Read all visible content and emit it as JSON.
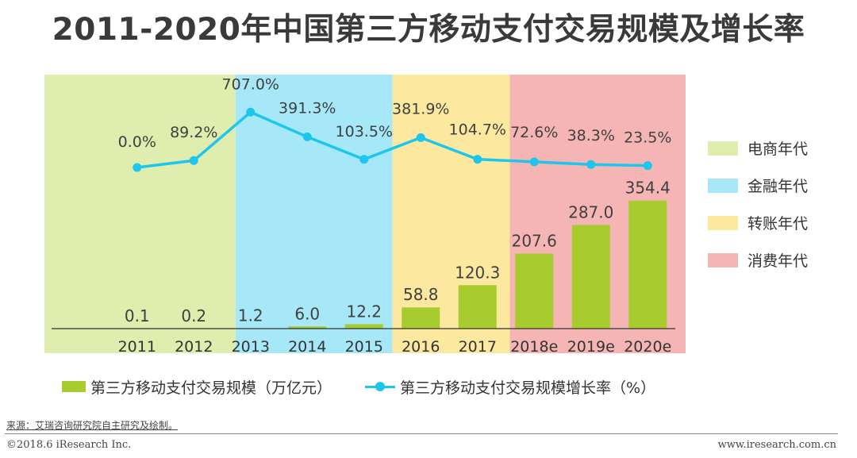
{
  "title": "2011-2020年中国第三方移动支付交易规模及增长率",
  "chart_data": {
    "type": "bar",
    "categories": [
      "2011",
      "2012",
      "2013",
      "2014",
      "2015",
      "2016",
      "2017",
      "2018e",
      "2019e",
      "2020e"
    ],
    "series": [
      {
        "name": "第三方移动支付交易规模（万亿元）",
        "type": "bar",
        "axis": "left",
        "color": "#a8cc30",
        "values": [
          0.1,
          0.2,
          1.2,
          6.0,
          12.2,
          58.8,
          120.3,
          207.6,
          287.0,
          354.4
        ],
        "labels": [
          "0.1",
          "0.2",
          "1.2",
          "6.0",
          "12.2",
          "58.8",
          "120.3",
          "207.6",
          "287.0",
          "354.4"
        ]
      },
      {
        "name": "第三方移动支付交易规模增长率（%）",
        "type": "line",
        "axis": "right",
        "color": "#1ec6ee",
        "values": [
          0.0,
          89.2,
          707.0,
          391.3,
          103.5,
          381.9,
          104.7,
          72.6,
          38.3,
          23.5
        ],
        "labels": [
          "0.0%",
          "89.2%",
          "707.0%",
          "391.3%",
          "103.5%",
          "381.9%",
          "104.7%",
          "72.6%",
          "38.3%",
          "23.5%"
        ]
      }
    ],
    "eras": [
      {
        "name": "电商年代",
        "color": "#dfedae",
        "from": "2011",
        "to": "2013"
      },
      {
        "name": "金融年代",
        "color": "#a6e8f8",
        "from": "2013",
        "to": "2015"
      },
      {
        "name": "转账年代",
        "color": "#fce99f",
        "from": "2016",
        "to": "2017"
      },
      {
        "name": "消费年代",
        "color": "#f6b5b5",
        "from": "2018e",
        "to": "2020e"
      }
    ],
    "ylim_left": [
      0,
      420
    ],
    "ylim_right": [
      -800,
      1400
    ],
    "grid": false,
    "legend_position": "right"
  },
  "source": "来源：艾瑞咨询研究院自主研究及绘制。",
  "copyright": "©2018.6 iResearch Inc.",
  "website": "www.iresearch.com.cn"
}
